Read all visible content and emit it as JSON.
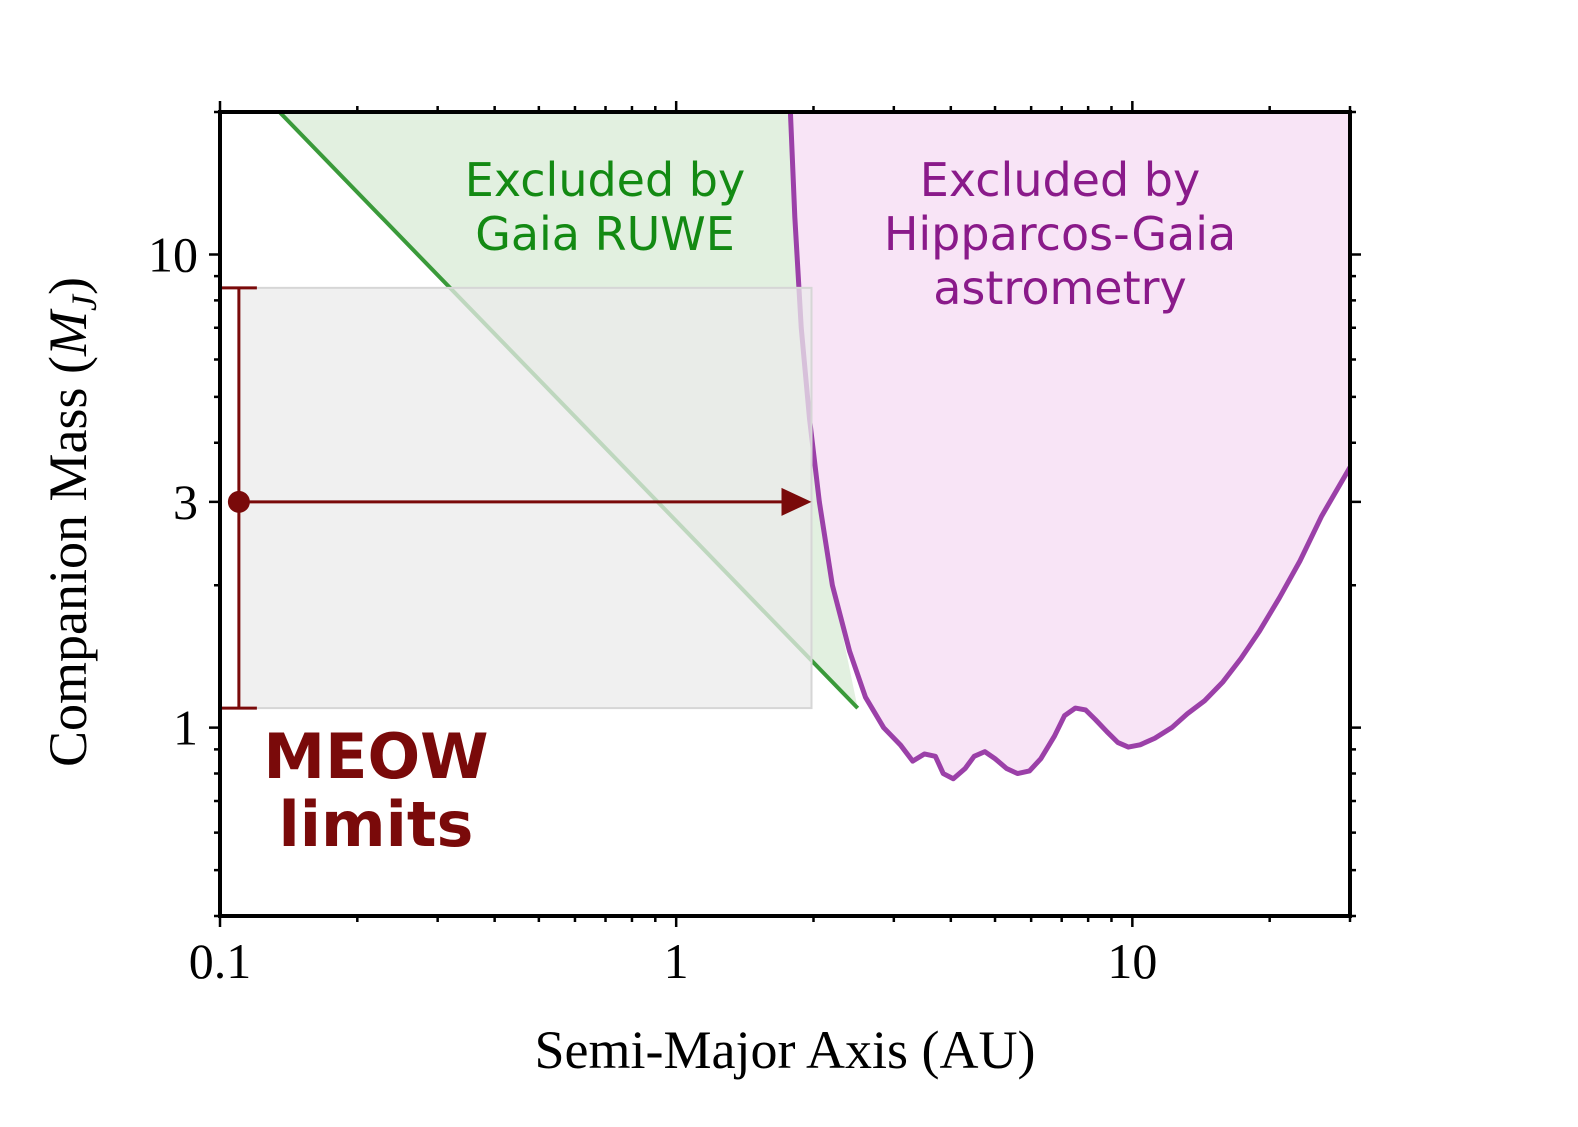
{
  "chart_data": {
    "type": "area",
    "xlabel": "Semi-Major Axis (AU)",
    "ylabel_text": "Companion Mass",
    "ylabel_symbol": "M",
    "ylabel_subscript": "J",
    "xscale": "log",
    "yscale": "log",
    "xlim": [
      0.1,
      30
    ],
    "ylim": [
      0.4,
      20
    ],
    "xticks": [
      {
        "value": 0.1,
        "label": "0.1"
      },
      {
        "value": 1,
        "label": "1"
      },
      {
        "value": 10,
        "label": "10"
      }
    ],
    "yticks": [
      {
        "value": 1,
        "label": "1"
      },
      {
        "value": 3,
        "label": "3"
      },
      {
        "value": 10,
        "label": "10"
      }
    ],
    "grid": false,
    "regions": [
      {
        "name": "gaia_ruwe",
        "label_lines": [
          "Excluded by",
          "Gaia RUWE"
        ],
        "line_color": "#3a9a3a",
        "fill_color": "#e2f0e0",
        "boundary": [
          [
            0.135,
            20
          ],
          [
            2.5,
            1.1
          ]
        ]
      },
      {
        "name": "hipparcos_gaia",
        "label_lines": [
          "Excluded by",
          "Hipparcos-Gaia",
          "astrometry"
        ],
        "line_color": "#9b40a8",
        "fill_color": "#f8e4f6",
        "boundary": [
          [
            1.78,
            20
          ],
          [
            1.82,
            12
          ],
          [
            1.88,
            7
          ],
          [
            1.96,
            4.5
          ],
          [
            2.06,
            3
          ],
          [
            2.2,
            2
          ],
          [
            2.4,
            1.45
          ],
          [
            2.6,
            1.16
          ],
          [
            2.85,
            1.0
          ],
          [
            3.1,
            0.92
          ],
          [
            3.3,
            0.85
          ],
          [
            3.5,
            0.88
          ],
          [
            3.7,
            0.87
          ],
          [
            3.85,
            0.8
          ],
          [
            4.05,
            0.78
          ],
          [
            4.3,
            0.82
          ],
          [
            4.5,
            0.87
          ],
          [
            4.75,
            0.89
          ],
          [
            5.0,
            0.86
          ],
          [
            5.3,
            0.82
          ],
          [
            5.6,
            0.8
          ],
          [
            5.95,
            0.81
          ],
          [
            6.3,
            0.86
          ],
          [
            6.75,
            0.96
          ],
          [
            7.1,
            1.06
          ],
          [
            7.5,
            1.1
          ],
          [
            7.9,
            1.09
          ],
          [
            8.3,
            1.04
          ],
          [
            8.8,
            0.98
          ],
          [
            9.3,
            0.93
          ],
          [
            9.8,
            0.91
          ],
          [
            10.4,
            0.92
          ],
          [
            11.2,
            0.95
          ],
          [
            12.2,
            1.0
          ],
          [
            13.2,
            1.07
          ],
          [
            14.4,
            1.14
          ],
          [
            15.8,
            1.25
          ],
          [
            17.3,
            1.4
          ],
          [
            19.0,
            1.6
          ],
          [
            21.0,
            1.88
          ],
          [
            23.3,
            2.25
          ],
          [
            26.0,
            2.8
          ],
          [
            30.0,
            3.55
          ]
        ]
      }
    ],
    "meow": {
      "label_lines": [
        "MEOW",
        "limits"
      ],
      "color": "#7a0a0a",
      "box_fill": "#ebebeb",
      "x_point": 0.11,
      "y_point": 3,
      "y_low": 1.1,
      "y_high": 8.5,
      "x_box_left": 0.11,
      "x_box_right": 1.98,
      "arrow_x_end": 1.98
    }
  }
}
